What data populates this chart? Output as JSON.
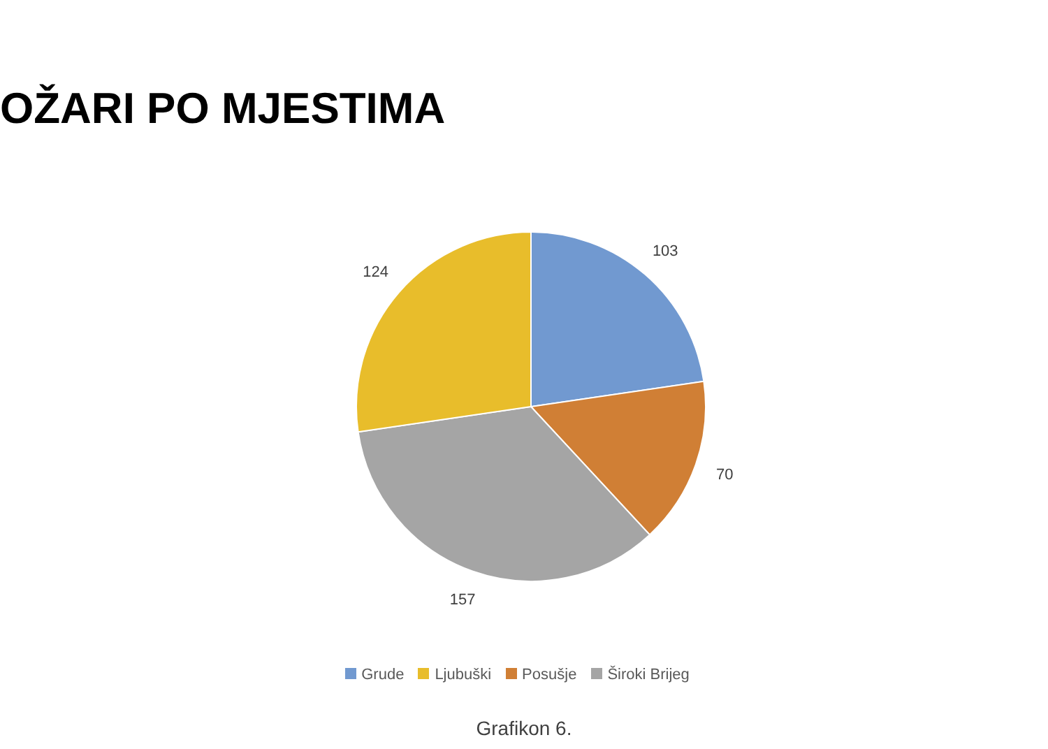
{
  "chart_data": {
    "type": "pie",
    "title": "OŽARI PO MJESTIMA",
    "categories": [
      "Grude",
      "Posušje",
      "Široki Brijeg",
      "Ljubuški"
    ],
    "values": [
      103,
      70,
      157,
      124
    ],
    "colors": [
      "#7199d0",
      "#d07f35",
      "#a5a5a5",
      "#e8bd2b"
    ],
    "data_labels": true,
    "legend": "bottom",
    "annotations": [
      "Grafikon 6."
    ]
  }
}
